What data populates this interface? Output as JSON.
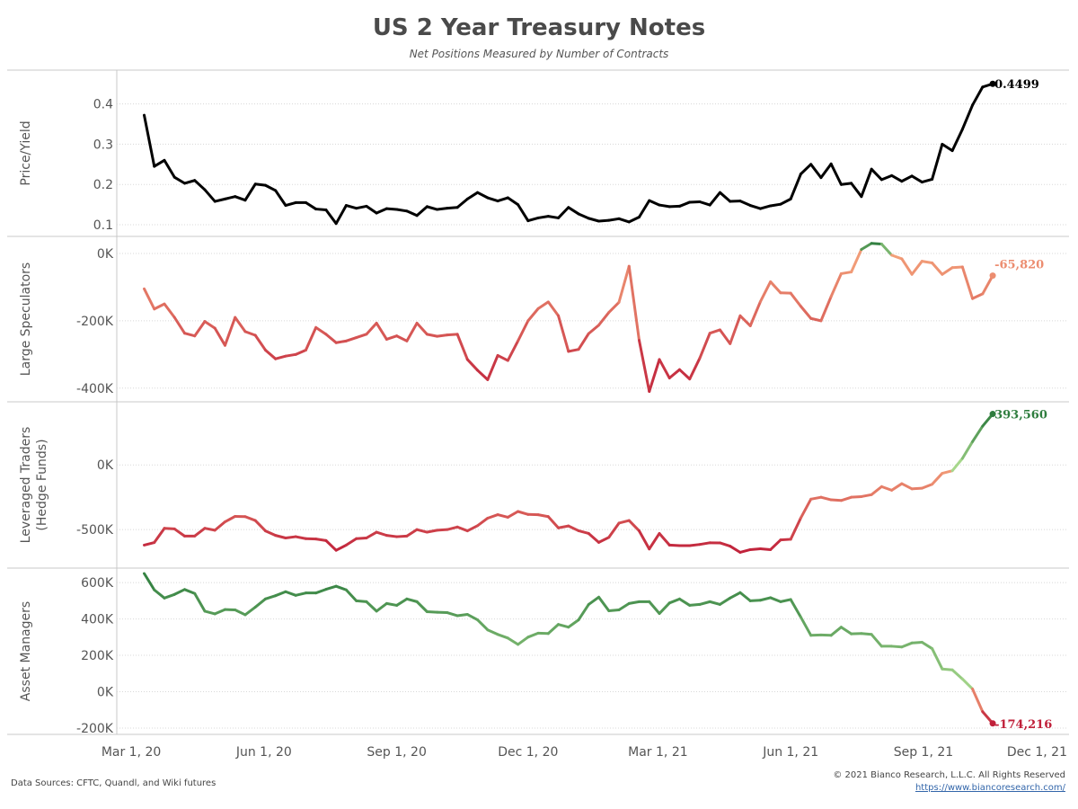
{
  "title": "US 2 Year Treasury Notes",
  "subtitle": "Net Positions Measured by Number of Contracts",
  "footer": {
    "source": "Data Sources: CFTC, Quandl, and Wiki futures",
    "copyright": "© 2021 Bianco Research, L.L.C. All Rights Reserved",
    "url": "https://www.biancoresearch.com/"
  },
  "colors": {
    "price_line": "#000000",
    "negative_dark": "#c0203a",
    "negative_light": "#f4a27a",
    "positive_light": "#a8d88c",
    "positive_dark": "#2e7d3e",
    "grid": "#d8d8d8",
    "panel_border": "#c8c8c8"
  },
  "chart_data": [
    {
      "type": "line",
      "panel": "price",
      "ylabel": "Price/Yield",
      "yticks": [
        0.1,
        0.2,
        0.3,
        0.4
      ],
      "yticklabels": [
        "0.1",
        "0.2",
        "0.3",
        "0.4"
      ],
      "ylim": [
        0.08,
        0.475
      ],
      "x_start": "2020-03-10",
      "x_step_days": 7,
      "xticks": [
        "2020-03-01",
        "2020-06-01",
        "2020-09-01",
        "2020-12-01",
        "2021-03-01",
        "2021-06-01",
        "2021-09-01",
        "2021-12-01"
      ],
      "xticklabels": [
        "Mar 1, 20",
        "Jun 1, 20",
        "Sep 1, 20",
        "Dec 1, 20",
        "Mar 1, 21",
        "Jun 1, 21",
        "Sep 1, 21",
        "Dec 1, 21"
      ],
      "end_label": "0.4499",
      "values": [
        0.372,
        0.245,
        0.26,
        0.218,
        0.203,
        0.21,
        0.187,
        0.158,
        0.164,
        0.17,
        0.161,
        0.201,
        0.198,
        0.185,
        0.148,
        0.155,
        0.155,
        0.139,
        0.137,
        0.103,
        0.148,
        0.141,
        0.146,
        0.129,
        0.14,
        0.138,
        0.134,
        0.123,
        0.145,
        0.138,
        0.141,
        0.143,
        0.164,
        0.18,
        0.167,
        0.159,
        0.167,
        0.15,
        0.11,
        0.117,
        0.121,
        0.117,
        0.143,
        0.127,
        0.116,
        0.109,
        0.111,
        0.115,
        0.107,
        0.119,
        0.16,
        0.149,
        0.145,
        0.146,
        0.156,
        0.157,
        0.149,
        0.18,
        0.158,
        0.159,
        0.148,
        0.14,
        0.147,
        0.151,
        0.164,
        0.226,
        0.25,
        0.217,
        0.251,
        0.2,
        0.203,
        0.17,
        0.238,
        0.212,
        0.222,
        0.208,
        0.221,
        0.206,
        0.213,
        0.3,
        0.284,
        0.337,
        0.397,
        0.442,
        0.4499
      ]
    },
    {
      "type": "line",
      "panel": "large-speculators",
      "ylabel": "Large Speculators",
      "yticks": [
        0,
        -200000,
        -400000
      ],
      "yticklabels": [
        "0K",
        "-200K",
        "-400K"
      ],
      "ylim": [
        -430000,
        40000
      ],
      "x_start": "2020-03-10",
      "x_step_days": 7,
      "end_label": "-65,820",
      "values": [
        -105000,
        -165000,
        -150000,
        -190000,
        -237000,
        -245000,
        -202000,
        -222000,
        -273000,
        -190000,
        -232000,
        -243000,
        -287000,
        -313000,
        -305000,
        -300000,
        -287000,
        -220000,
        -240000,
        -265000,
        -260000,
        -250000,
        -240000,
        -207000,
        -255000,
        -245000,
        -260000,
        -207000,
        -240000,
        -246000,
        -242000,
        -240000,
        -315000,
        -347000,
        -375000,
        -303000,
        -318000,
        -260000,
        -200000,
        -164000,
        -144000,
        -185000,
        -291000,
        -285000,
        -238000,
        -213000,
        -175000,
        -145000,
        -38000,
        -258000,
        -410000,
        -315000,
        -370000,
        -345000,
        -373000,
        -311000,
        -237000,
        -227000,
        -268000,
        -185000,
        -215000,
        -143000,
        -84000,
        -117000,
        -118000,
        -157000,
        -193000,
        -200000,
        -128000,
        -60000,
        -55000,
        12000,
        30000,
        28000,
        -5000,
        -16000,
        -62000,
        -23000,
        -28000,
        -62000,
        -42000,
        -40000,
        -134000,
        -120000,
        -65820
      ]
    },
    {
      "type": "line",
      "panel": "leveraged-traders",
      "ylabel": "Leveraged Traders",
      "ylabel2": "(Hedge Funds)",
      "yticks": [
        0,
        -500000
      ],
      "yticklabels": [
        "0K",
        "-500K"
      ],
      "ylim": [
        -770000,
        460000
      ],
      "x_start": "2020-03-10",
      "x_step_days": 7,
      "end_label": "393,560",
      "values": [
        -620000,
        -600000,
        -490000,
        -495000,
        -550000,
        -550000,
        -490000,
        -505000,
        -440000,
        -398000,
        -400000,
        -430000,
        -510000,
        -545000,
        -565000,
        -555000,
        -570000,
        -573000,
        -585000,
        -660000,
        -620000,
        -570000,
        -565000,
        -520000,
        -545000,
        -555000,
        -550000,
        -500000,
        -520000,
        -505000,
        -500000,
        -480000,
        -510000,
        -470000,
        -412000,
        -385000,
        -405000,
        -360000,
        -383000,
        -385000,
        -400000,
        -487000,
        -472000,
        -509000,
        -530000,
        -599000,
        -560000,
        -450000,
        -430000,
        -510000,
        -650000,
        -530000,
        -620000,
        -624000,
        -624000,
        -615000,
        -602000,
        -603000,
        -628000,
        -676000,
        -655000,
        -648000,
        -655000,
        -580000,
        -575000,
        -410000,
        -265000,
        -250000,
        -270000,
        -275000,
        -250000,
        -245000,
        -230000,
        -168000,
        -196000,
        -145000,
        -185000,
        -180000,
        -150000,
        -65000,
        -45000,
        50000,
        180000,
        300000,
        393560
      ]
    },
    {
      "type": "line",
      "panel": "asset-managers",
      "ylabel": "Asset Managers",
      "yticks": [
        600000,
        400000,
        200000,
        0,
        -200000
      ],
      "yticklabels": [
        "600K",
        "400K",
        "200K",
        "0K",
        "-200K"
      ],
      "ylim": [
        -215000,
        660000
      ],
      "x_start": "2020-03-10",
      "x_step_days": 7,
      "end_label": "-174,216",
      "values": [
        650000,
        560000,
        515000,
        535000,
        562000,
        540000,
        443000,
        428000,
        452000,
        450000,
        423000,
        465000,
        510000,
        528000,
        550000,
        530000,
        543000,
        543000,
        563000,
        580000,
        560000,
        500000,
        495000,
        443000,
        485000,
        475000,
        510000,
        495000,
        440000,
        437000,
        435000,
        418000,
        425000,
        395000,
        340000,
        315000,
        295000,
        260000,
        300000,
        322000,
        320000,
        370000,
        355000,
        395000,
        480000,
        520000,
        445000,
        450000,
        485000,
        495000,
        495000,
        430000,
        488000,
        510000,
        475000,
        480000,
        495000,
        480000,
        515000,
        545000,
        500000,
        503000,
        517000,
        495000,
        507000,
        410000,
        310000,
        312000,
        310000,
        355000,
        318000,
        320000,
        315000,
        250000,
        250000,
        246000,
        268000,
        272000,
        237000,
        125000,
        120000,
        70000,
        15000,
        -110000,
        -174216
      ]
    }
  ]
}
